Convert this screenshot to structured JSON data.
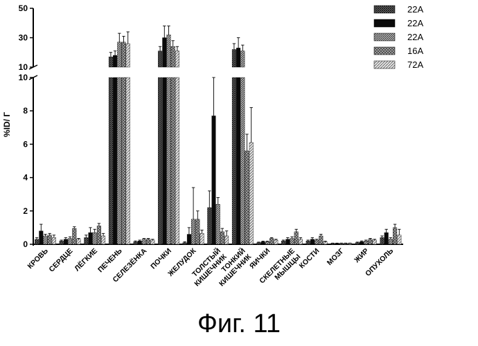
{
  "caption": "Фиг. 11",
  "chart_data": {
    "type": "bar",
    "ylabel": "%ID/ Г",
    "xlabel": "",
    "broken_axis": true,
    "lower_ylim": [
      0,
      10
    ],
    "upper_ylim": [
      10,
      50
    ],
    "lower_yticks": [
      "0",
      "2",
      "4",
      "6",
      "8",
      "10"
    ],
    "upper_yticks": [
      "10",
      "30",
      "50"
    ],
    "legend_position": "top-right",
    "categories": [
      "КРОВЬ",
      "СЕРДЦЕ",
      "ЛЁГКИЕ",
      "ПЕЧЕНЬ",
      "СЕЛЕЗЁНКА",
      "ПОЧКИ",
      "ЖЕЛУДОК",
      "ТОЛСТЫЙ КИШЕЧНИК",
      "ТОНКИЙ КИШЕЧНИК",
      "ЯИЧКИ",
      "СКЕЛЕТНЫЕ МЫШЦЫ",
      "КОСТИ",
      "МОЗГ",
      "ЖИР",
      "ОПУХОЛЬ"
    ],
    "category_lines": [
      [
        "КРОВЬ"
      ],
      [
        "СЕРДЦЕ"
      ],
      [
        "ЛЁГКИЕ"
      ],
      [
        "ПЕЧЕНЬ"
      ],
      [
        "СЕЛЕЗЁНКА"
      ],
      [
        "ПОЧКИ"
      ],
      [
        "ЖЕЛУДОК"
      ],
      [
        "ТОЛСТЫЙ",
        "КИШЕЧНИК"
      ],
      [
        "ТОНКИЙ",
        "КИШЕЧНИК"
      ],
      [
        "ЯИЧКИ"
      ],
      [
        "СКЕЛЕТНЫЕ",
        "МЫШЦЫ"
      ],
      [
        "КОСТИ"
      ],
      [
        "МОЗГ"
      ],
      [
        "ЖИР"
      ],
      [
        "ОПУХОЛЬ"
      ]
    ],
    "series": [
      {
        "name": "22А",
        "pattern": "crosshatch-dark",
        "values": [
          0.3,
          0.2,
          0.4,
          17,
          0.15,
          21,
          0.1,
          2.2,
          22,
          0.1,
          0.2,
          0.2,
          0.05,
          0.1,
          0.4
        ],
        "errors": [
          0.1,
          0.05,
          0.15,
          3,
          0.05,
          3,
          0.05,
          1.0,
          4,
          0.03,
          0.05,
          0.05,
          0.02,
          0.03,
          0.1
        ]
      },
      {
        "name": "22А",
        "pattern": "solid-black",
        "values": [
          0.8,
          0.3,
          0.7,
          18,
          0.2,
          30,
          0.6,
          7.7,
          23,
          0.15,
          0.3,
          0.3,
          0.05,
          0.15,
          0.7
        ],
        "errors": [
          0.4,
          0.1,
          0.3,
          3,
          0.05,
          8,
          0.4,
          6.8,
          7,
          0.04,
          0.1,
          0.1,
          0.02,
          0.05,
          0.2
        ]
      },
      {
        "name": "22А",
        "pattern": "hatch-dense",
        "values": [
          0.5,
          0.35,
          0.7,
          27,
          0.3,
          32,
          1.5,
          2.4,
          21,
          0.15,
          0.35,
          0.25,
          0.05,
          0.2,
          0.3
        ],
        "errors": [
          0.1,
          0.1,
          0.2,
          6,
          0.05,
          6,
          1.9,
          0.4,
          4,
          0.04,
          0.1,
          0.05,
          0.02,
          0.05,
          0.1
        ]
      },
      {
        "name": "16А",
        "pattern": "crosshatch-medium",
        "values": [
          0.55,
          0.95,
          1.1,
          27,
          0.3,
          24,
          1.5,
          0.75,
          5.6,
          0.35,
          0.75,
          0.5,
          0.05,
          0.3,
          1.0
        ],
        "errors": [
          0.1,
          0.1,
          0.15,
          4,
          0.05,
          4,
          0.5,
          0.2,
          1.0,
          0.05,
          0.15,
          0.1,
          0.02,
          0.05,
          0.2
        ]
      },
      {
        "name": "72А",
        "pattern": "hatch-light",
        "values": [
          0.4,
          0.3,
          0.5,
          26,
          0.25,
          21,
          0.65,
          0.5,
          6.1,
          0.25,
          0.3,
          0.15,
          0.05,
          0.25,
          0.55
        ],
        "errors": [
          0.15,
          0.05,
          0.15,
          8,
          0.05,
          3,
          0.2,
          0.3,
          2.1,
          0.05,
          0.1,
          0.04,
          0.02,
          0.05,
          0.35
        ]
      }
    ]
  }
}
